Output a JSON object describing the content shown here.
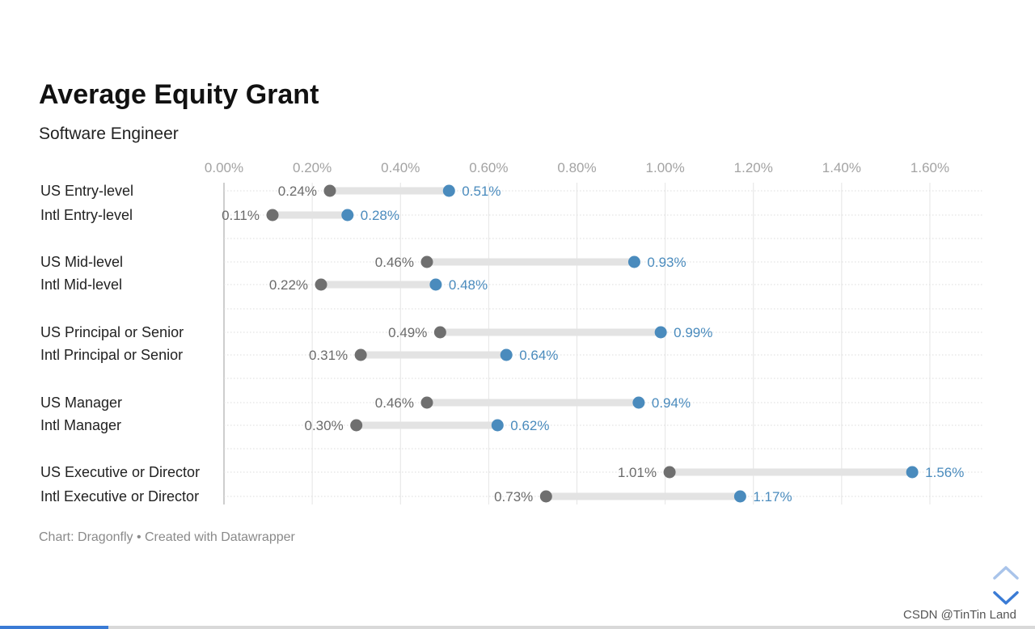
{
  "chart_data": {
    "type": "dot-range",
    "title": "Average Equity Grant",
    "subtitle": "Software Engineer",
    "x_ticks": [
      "0.00%",
      "0.20%",
      "0.40%",
      "0.60%",
      "0.80%",
      "1.00%",
      "1.20%",
      "1.40%",
      "1.60%"
    ],
    "xlim": [
      0,
      1.6
    ],
    "grid": true,
    "colors": {
      "low": "#6f6f6f",
      "high": "#4a8bbd",
      "bar": "#e3e3e3"
    },
    "rows": [
      {
        "label": "US Entry-level",
        "low": 0.24,
        "high": 0.51,
        "low_label": "0.24%",
        "high_label": "0.51%"
      },
      {
        "label": "Intl Entry-level",
        "low": 0.11,
        "high": 0.28,
        "low_label": "0.11%",
        "high_label": "0.28%"
      },
      {
        "label": "US Mid-level",
        "low": 0.46,
        "high": 0.93,
        "low_label": "0.46%",
        "high_label": "0.93%"
      },
      {
        "label": "Intl Mid-level",
        "low": 0.22,
        "high": 0.48,
        "low_label": "0.22%",
        "high_label": "0.48%"
      },
      {
        "label": "US Principal or Senior",
        "low": 0.49,
        "high": 0.99,
        "low_label": "0.49%",
        "high_label": "0.99%"
      },
      {
        "label": "Intl Principal or Senior",
        "low": 0.31,
        "high": 0.64,
        "low_label": "0.31%",
        "high_label": "0.64%"
      },
      {
        "label": "US Manager",
        "low": 0.46,
        "high": 0.94,
        "low_label": "0.46%",
        "high_label": "0.94%"
      },
      {
        "label": "Intl Manager",
        "low": 0.3,
        "high": 0.62,
        "low_label": "0.30%",
        "high_label": "0.62%"
      },
      {
        "label": "US Executive or Director",
        "low": 1.01,
        "high": 1.56,
        "low_label": "1.01%",
        "high_label": "1.56%"
      },
      {
        "label": "Intl Executive or Director",
        "low": 0.73,
        "high": 1.17,
        "low_label": "0.73%",
        "high_label": "1.17%"
      }
    ]
  },
  "footer": {
    "text": "Chart: Dragonfly • Created with Datawrapper"
  },
  "watermark": {
    "text": "CSDN @TinTin Land"
  },
  "nav": {
    "up_icon": "chevron-up-icon",
    "down_icon": "chevron-down-icon",
    "up_color": "#a9c4ea",
    "down_color": "#3a7bd5"
  },
  "reading_progress": 0.105
}
